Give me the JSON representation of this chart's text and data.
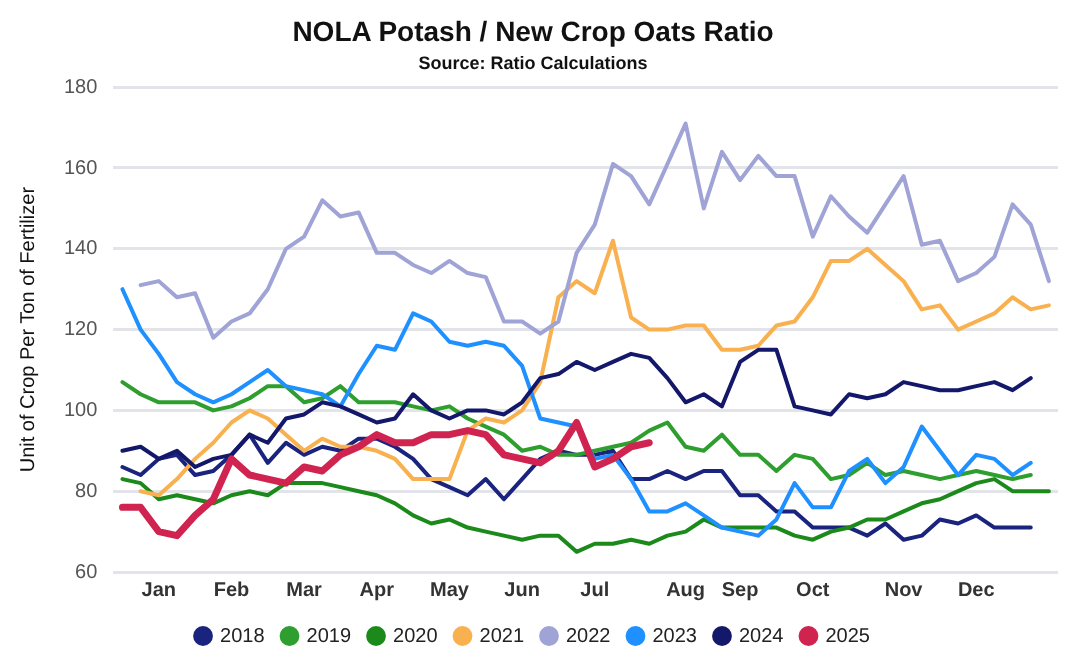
{
  "chart_data": {
    "type": "line",
    "title": "NOLA Potash / New Crop Oats Ratio",
    "subtitle": "Source: Ratio Calculations",
    "ylabel": "Unit of Crop Per Ton of Fertilizer",
    "categories": [
      null,
      null,
      "Jan",
      null,
      null,
      null,
      "Feb",
      null,
      null,
      null,
      "Mar",
      null,
      null,
      null,
      "Apr",
      null,
      null,
      null,
      "May",
      null,
      null,
      null,
      "Jun",
      null,
      null,
      null,
      "Jul",
      null,
      null,
      null,
      null,
      "Aug",
      null,
      null,
      "Sep",
      null,
      null,
      null,
      "Oct",
      null,
      null,
      null,
      null,
      "Nov",
      null,
      null,
      null,
      "Dec",
      null,
      null,
      null,
      null
    ],
    "ylim": [
      60,
      180
    ],
    "yticks": [
      60,
      80,
      100,
      120,
      140,
      160,
      180
    ],
    "grid": "y",
    "legend": "bottom",
    "marker": "none",
    "line_style": "solid",
    "series": [
      {
        "name": "2018",
        "color": "#1a237e",
        "values": [
          86,
          84,
          88,
          89,
          84,
          85,
          89,
          94,
          87,
          92,
          89,
          91,
          90,
          93,
          93,
          91,
          88,
          83,
          81,
          79,
          83,
          78,
          83,
          88,
          90,
          89,
          89,
          90,
          83,
          83,
          85,
          83,
          85,
          85,
          79,
          79,
          75,
          75,
          71,
          71,
          71,
          69,
          72,
          68,
          69,
          73,
          72,
          74,
          71,
          71,
          71,
          null
        ]
      },
      {
        "name": "2019",
        "color": "#2e9e2e",
        "values": [
          107,
          104,
          102,
          102,
          102,
          100,
          101,
          103,
          106,
          106,
          102,
          103,
          106,
          102,
          102,
          102,
          101,
          100,
          101,
          98,
          96,
          94,
          90,
          91,
          89,
          89,
          90,
          91,
          92,
          95,
          97,
          91,
          90,
          94,
          89,
          89,
          85,
          89,
          88,
          83,
          84,
          87,
          84,
          85,
          84,
          83,
          84,
          85,
          84,
          83,
          84,
          null
        ]
      },
      {
        "name": "2020",
        "color": "#1b8a1b",
        "values": [
          83,
          82,
          78,
          79,
          78,
          77,
          79,
          80,
          79,
          82,
          82,
          82,
          81,
          80,
          79,
          77,
          74,
          72,
          73,
          71,
          70,
          69,
          68,
          69,
          69,
          65,
          67,
          67,
          68,
          67,
          69,
          70,
          73,
          71,
          71,
          71,
          71,
          69,
          68,
          70,
          71,
          73,
          73,
          75,
          77,
          78,
          80,
          82,
          83,
          80,
          80,
          80
        ]
      },
      {
        "name": "2021",
        "color": "#f9b04f",
        "values": [
          null,
          80,
          79,
          83,
          88,
          92,
          97,
          100,
          98,
          94,
          90,
          93,
          91,
          91,
          90,
          88,
          83,
          83,
          83,
          95,
          98,
          97,
          100,
          107,
          128,
          132,
          129,
          142,
          123,
          120,
          120,
          121,
          121,
          115,
          115,
          116,
          121,
          122,
          128,
          137,
          137,
          140,
          136,
          132,
          125,
          126,
          120,
          122,
          124,
          128,
          125,
          126
        ]
      },
      {
        "name": "2022",
        "color": "#9fa3d6",
        "values": [
          null,
          131,
          132,
          128,
          129,
          118,
          122,
          124,
          130,
          140,
          143,
          152,
          148,
          149,
          139,
          139,
          136,
          134,
          137,
          134,
          133,
          122,
          122,
          119,
          122,
          139,
          146,
          161,
          158,
          151,
          161,
          171,
          150,
          164,
          157,
          163,
          158,
          158,
          143,
          153,
          148,
          144,
          151,
          158,
          141,
          142,
          132,
          134,
          138,
          151,
          146,
          132
        ]
      },
      {
        "name": "2023",
        "color": "#1e90ff",
        "values": [
          130,
          120,
          114,
          107,
          104,
          102,
          104,
          107,
          110,
          106,
          105,
          104,
          101,
          109,
          116,
          115,
          124,
          122,
          117,
          116,
          117,
          116,
          111,
          98,
          97,
          96,
          88,
          89,
          83,
          75,
          75,
          77,
          74,
          71,
          70,
          69,
          73,
          82,
          76,
          76,
          85,
          88,
          82,
          86,
          96,
          90,
          84,
          89,
          88,
          84,
          87,
          null
        ]
      },
      {
        "name": "2024",
        "color": "#14186b",
        "values": [
          90,
          91,
          88,
          90,
          86,
          88,
          89,
          94,
          92,
          98,
          99,
          102,
          101,
          99,
          97,
          98,
          104,
          100,
          98,
          100,
          100,
          99,
          102,
          108,
          109,
          112,
          110,
          112,
          114,
          113,
          108,
          102,
          104,
          101,
          112,
          115,
          115,
          101,
          100,
          99,
          104,
          103,
          104,
          107,
          106,
          105,
          105,
          106,
          107,
          105,
          108,
          null
        ]
      },
      {
        "name": "2025",
        "color": "#d0234f",
        "values": [
          76,
          76,
          70,
          69,
          74,
          78,
          88,
          84,
          83,
          82,
          86,
          85,
          89,
          91,
          94,
          92,
          92,
          94,
          94,
          95,
          94,
          89,
          88,
          87,
          90,
          97,
          86,
          88,
          91,
          92,
          null,
          null,
          null,
          null,
          null,
          null,
          null,
          null,
          null,
          null,
          null,
          null,
          null,
          null,
          null,
          null,
          null,
          null,
          null,
          null,
          null,
          null
        ]
      }
    ]
  }
}
